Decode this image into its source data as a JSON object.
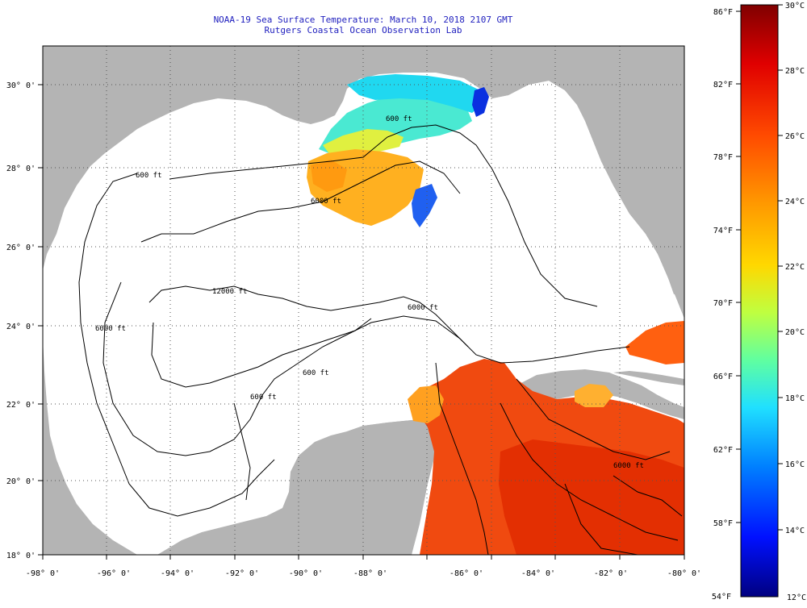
{
  "title": {
    "line1": "NOAA-19 Sea Surface Temperature:  March 10, 2018 2107 GMT",
    "line2": "Rutgers Coastal Ocean Observation Lab"
  },
  "map": {
    "lon_labels": [
      "-98° 0'",
      "-96° 0'",
      "-94° 0'",
      "-92° 0'",
      "-90° 0'",
      "-88° 0'",
      "-86° 0'",
      "-84° 0'",
      "-82° 0'",
      "-80° 0'"
    ],
    "lat_labels": [
      "30° 0'",
      "28° 0'",
      "26° 0'",
      "24° 0'",
      "22° 0'",
      "20° 0'",
      "18° 0'"
    ],
    "contour_labels": [
      "600 ft",
      "600 ft",
      "6000 ft",
      "6000 ft",
      "12000 ft",
      "600 ft",
      "600 ft",
      "6000 ft",
      "6000 ft"
    ],
    "colors": {
      "land": "#b4b4b4",
      "no_data": "#ffffff",
      "title": "#1e1ebe"
    }
  },
  "colorbar": {
    "fahrenheit_labels": [
      "86°F",
      "82°F",
      "78°F",
      "74°F",
      "70°F",
      "66°F",
      "62°F",
      "58°F",
      "54°F"
    ],
    "celsius_labels": [
      "30°C",
      "28°C",
      "26°C",
      "24°C",
      "22°C",
      "20°C",
      "18°C",
      "16°C",
      "14°C",
      "12°C"
    ],
    "colors": [
      "#800000",
      "#e00000",
      "#ff4a00",
      "#ff9500",
      "#ffd800",
      "#bfff40",
      "#60ffa0",
      "#20e0ff",
      "#0080ff",
      "#0010ff",
      "#000080"
    ]
  }
}
